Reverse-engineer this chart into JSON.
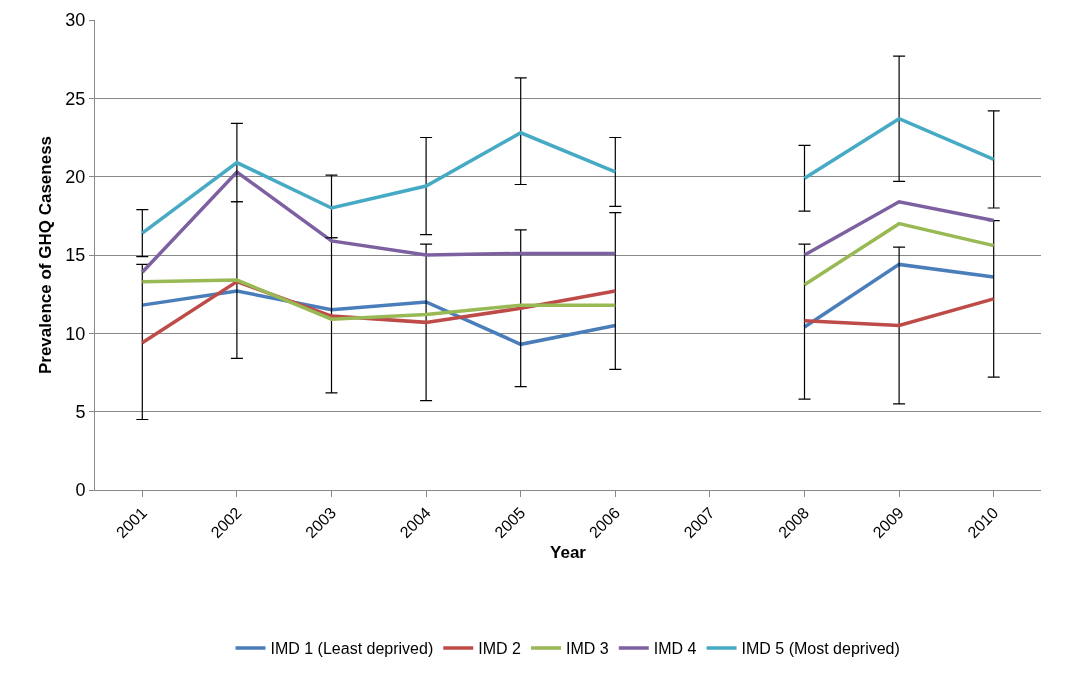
{
  "chart_data": {
    "type": "line",
    "xlabel": "Year",
    "ylabel": "Prevalence of GHQ Caseness",
    "categories": [
      "2001",
      "2002",
      "2003",
      "2004",
      "2005",
      "2006",
      "2007",
      "2008",
      "2009",
      "2010"
    ],
    "ylim": [
      0,
      30
    ],
    "yticks": [
      0,
      5,
      10,
      15,
      20,
      25,
      30
    ],
    "grid": "y",
    "legend": "bottom",
    "marker": "none",
    "line_style": "solid",
    "series": [
      {
        "name": "IMD 1 (Least deprived)",
        "color": "#4a7ebb",
        "values": [
          11.8,
          12.7,
          11.5,
          12.0,
          9.3,
          10.5,
          null,
          10.4,
          14.4,
          13.6
        ]
      },
      {
        "name": "IMD 2",
        "color": "#be4b48",
        "values": [
          9.4,
          13.3,
          11.1,
          10.7,
          11.6,
          12.7,
          null,
          10.8,
          10.5,
          12.2
        ],
        "errors": [
          [
            4.5,
            14.4
          ],
          [
            8.4,
            18.4
          ],
          [
            6.2,
            16.1
          ],
          [
            5.7,
            15.7
          ],
          [
            6.6,
            16.6
          ],
          [
            7.7,
            17.7
          ],
          null,
          [
            5.8,
            15.7
          ],
          [
            5.5,
            15.5
          ],
          [
            7.2,
            17.2
          ]
        ]
      },
      {
        "name": "IMD 3",
        "color": "#98b954",
        "values": [
          13.3,
          13.4,
          10.9,
          11.2,
          11.8,
          11.8,
          null,
          13.1,
          17.0,
          15.6
        ]
      },
      {
        "name": "IMD 4",
        "color": "#7d60a0",
        "values": [
          13.9,
          20.3,
          15.9,
          15.0,
          15.1,
          15.1,
          null,
          15.0,
          18.4,
          17.2
        ]
      },
      {
        "name": "IMD 5 (Most deprived)",
        "color": "#46aac5",
        "values": [
          16.4,
          20.9,
          18.0,
          19.4,
          22.8,
          20.3,
          null,
          19.9,
          23.7,
          21.1
        ],
        "errors": [
          [
            14.9,
            17.9
          ],
          [
            18.4,
            23.4
          ],
          [
            16.1,
            20.1
          ],
          [
            16.3,
            22.5
          ],
          [
            19.5,
            26.3
          ],
          [
            18.1,
            22.5
          ],
          null,
          [
            17.8,
            22.0
          ],
          [
            19.7,
            27.7
          ],
          [
            18.0,
            24.2
          ]
        ]
      }
    ]
  }
}
